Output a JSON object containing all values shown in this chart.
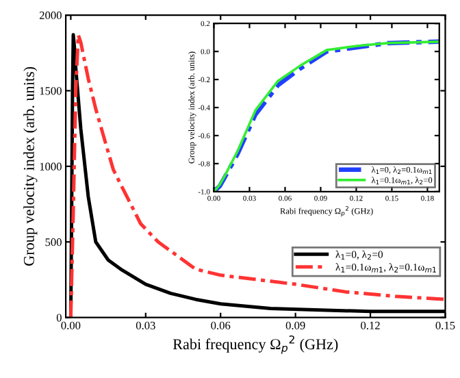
{
  "chart_data": [
    {
      "type": "line",
      "xlabel": "Rabi frequency Ω$_{p}$$^{2}$ (GHz)",
      "ylabel": "Group velocity index (arb. units)",
      "xlim": [
        -0.002,
        0.15
      ],
      "ylim": [
        0,
        2000
      ],
      "xticks": [
        {
          "value": 0,
          "label": "0.00"
        },
        {
          "value": 0.03,
          "label": "0.03"
        },
        {
          "value": 0.06,
          "label": "0.06"
        },
        {
          "value": 0.09,
          "label": "0.09"
        },
        {
          "value": 0.12,
          "label": "0.12"
        },
        {
          "value": 0.15,
          "label": "0.15"
        }
      ],
      "yticks": [
        0,
        500,
        1000,
        1500,
        2000
      ],
      "legend": "bottom right",
      "grid": false,
      "series": [
        {
          "name": "λ$_{1}$=0, λ$_{2}$=0",
          "color": "#000000",
          "line_style": "solid",
          "x": [
            0,
            0.0003,
            0.0007,
            0.001,
            0.0015,
            0.002,
            0.003,
            0.004,
            0.005,
            0.007,
            0.01,
            0.015,
            0.02,
            0.03,
            0.04,
            0.05,
            0.06,
            0.08,
            0.1,
            0.12,
            0.15
          ],
          "values": [
            0,
            600,
            1500,
            1870,
            1780,
            1650,
            1450,
            1250,
            1100,
            800,
            500,
            380,
            320,
            220,
            160,
            120,
            90,
            60,
            50,
            40,
            40
          ]
        },
        {
          "name": "λ$_{1}$=0.1ω$_{m1}$, λ$_{2}$=0.1ω$_{m1}$",
          "color": "#ff3333",
          "line_style": "dashdot",
          "x": [
            0,
            0.001,
            0.002,
            0.003,
            0.004,
            0.005,
            0.007,
            0.01,
            0.014,
            0.017,
            0.02,
            0.028,
            0.035,
            0.05,
            0.06,
            0.075,
            0.09,
            0.11,
            0.13,
            0.15
          ],
          "values": [
            0,
            700,
            1500,
            1870,
            1820,
            1740,
            1580,
            1380,
            1150,
            980,
            880,
            620,
            500,
            320,
            280,
            250,
            220,
            170,
            140,
            120
          ]
        }
      ]
    },
    {
      "type": "line",
      "xlabel": "Rabi frequency Ω$_{p}$$^{2}$ (GHz)",
      "ylabel": "Group velocity index (arb. units)",
      "xlim": [
        0,
        0.19
      ],
      "ylim": [
        -1,
        0.2
      ],
      "xticks": [
        {
          "value": 0,
          "label": "0.00"
        },
        {
          "value": 0.03,
          "label": "0.03"
        },
        {
          "value": 0.06,
          "label": "0.06"
        },
        {
          "value": 0.09,
          "label": "0.09"
        },
        {
          "value": 0.12,
          "label": "0.12"
        },
        {
          "value": 0.15,
          "label": "0.15"
        },
        {
          "value": 0.18,
          "label": "0.18"
        }
      ],
      "yticks": [
        {
          "value": -1,
          "label": "-1.0"
        },
        {
          "value": -0.8,
          "label": "-0.8"
        },
        {
          "value": -0.6,
          "label": "-0.6"
        },
        {
          "value": -0.4,
          "label": "-0.4"
        },
        {
          "value": -0.2,
          "label": "-0.2"
        },
        {
          "value": 0,
          "label": "0.0"
        },
        {
          "value": 0.2,
          "label": "0.2"
        }
      ],
      "legend": "bottom right",
      "grid": false,
      "series": [
        {
          "name": "λ$_{1}$=0, λ$_{2}$=0.1ω$_{m1}$",
          "color": "#2040ff",
          "line_style": "dashdot",
          "x": [
            0,
            0.005,
            0.009,
            0.02,
            0.035,
            0.054,
            0.073,
            0.095,
            0.121,
            0.147,
            0.19
          ],
          "values": [
            -1,
            -0.96,
            -0.9,
            -0.73,
            -0.45,
            -0.24,
            -0.12,
            0.0,
            0.03,
            0.06,
            0.07
          ]
        },
        {
          "name": "λ$_{1}$=0.1ω$_{m1}$, λ$_{2}$=0",
          "color": "#33ee33",
          "line_style": "solid",
          "x": [
            0,
            0.005,
            0.009,
            0.02,
            0.035,
            0.054,
            0.073,
            0.095,
            0.121,
            0.147,
            0.19
          ],
          "values": [
            -1,
            -0.95,
            -0.89,
            -0.71,
            -0.42,
            -0.21,
            -0.1,
            0.01,
            0.04,
            0.06,
            0.07
          ]
        }
      ]
    }
  ]
}
